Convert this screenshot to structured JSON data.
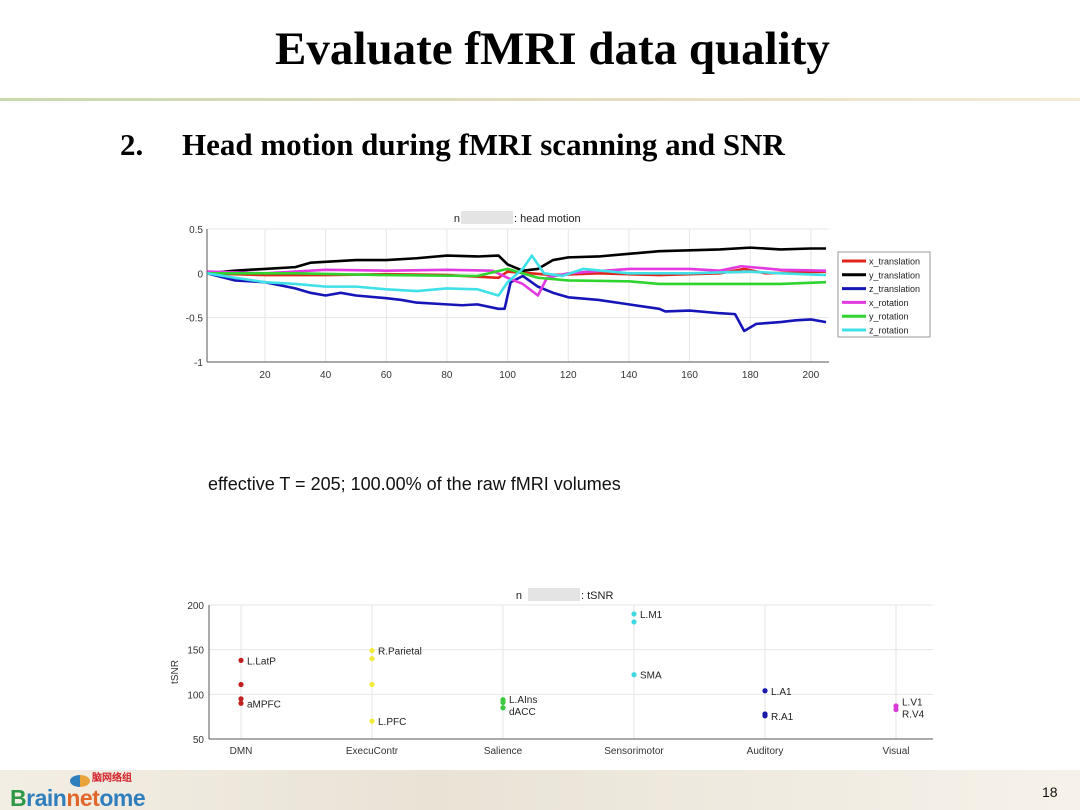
{
  "slide": {
    "title": "Evaluate fMRI data quality",
    "subtitle_number": "2.",
    "subtitle": "Head motion during fMRI scanning and SNR",
    "effective_text": "effective T = 205; 100.00% of the raw fMRI volumes",
    "page_number": "18",
    "logo": "Brainnetome",
    "logo_cn": "脑网络组"
  },
  "chart_data": [
    {
      "type": "line",
      "title_prefix": "n",
      "title_suffix": ": head motion",
      "xlim": [
        1,
        205
      ],
      "ylim": [
        -1,
        0.5
      ],
      "xticks": [
        20,
        40,
        60,
        80,
        100,
        120,
        140,
        160,
        180,
        200
      ],
      "yticks": [
        0.5,
        0,
        -0.5,
        -1
      ],
      "ytick_labels": [
        "0.5",
        "0",
        "-0.5",
        "-1"
      ],
      "grid": true,
      "legend": "right",
      "series": [
        {
          "name": "x_translation",
          "color": "#e0261b",
          "points": [
            [
              1,
              0
            ],
            [
              20,
              -0.02
            ],
            [
              40,
              -0.02
            ],
            [
              60,
              -0.01
            ],
            [
              80,
              -0.02
            ],
            [
              97,
              -0.05
            ],
            [
              100,
              0.02
            ],
            [
              115,
              -0.02
            ],
            [
              130,
              0
            ],
            [
              150,
              -0.02
            ],
            [
              170,
              0
            ],
            [
              178,
              0.05
            ],
            [
              185,
              0
            ],
            [
              205,
              0.02
            ]
          ]
        },
        {
          "name": "y_translation",
          "color": "#000000",
          "points": [
            [
              1,
              0
            ],
            [
              10,
              0.03
            ],
            [
              20,
              0.05
            ],
            [
              30,
              0.07
            ],
            [
              35,
              0.12
            ],
            [
              40,
              0.13
            ],
            [
              50,
              0.15
            ],
            [
              60,
              0.15
            ],
            [
              70,
              0.17
            ],
            [
              80,
              0.2
            ],
            [
              90,
              0.19
            ],
            [
              97,
              0.2
            ],
            [
              100,
              0.1
            ],
            [
              105,
              0.03
            ],
            [
              110,
              0.05
            ],
            [
              115,
              0.15
            ],
            [
              120,
              0.18
            ],
            [
              130,
              0.19
            ],
            [
              140,
              0.22
            ],
            [
              150,
              0.25
            ],
            [
              160,
              0.26
            ],
            [
              170,
              0.27
            ],
            [
              180,
              0.29
            ],
            [
              190,
              0.27
            ],
            [
              200,
              0.28
            ],
            [
              205,
              0.28
            ]
          ]
        },
        {
          "name": "z_translation",
          "color": "#1616b8",
          "points": [
            [
              1,
              0
            ],
            [
              10,
              -0.08
            ],
            [
              20,
              -0.1
            ],
            [
              30,
              -0.17
            ],
            [
              35,
              -0.22
            ],
            [
              40,
              -0.25
            ],
            [
              45,
              -0.22
            ],
            [
              50,
              -0.25
            ],
            [
              60,
              -0.28
            ],
            [
              65,
              -0.3
            ],
            [
              70,
              -0.33
            ],
            [
              80,
              -0.35
            ],
            [
              85,
              -0.36
            ],
            [
              90,
              -0.35
            ],
            [
              97,
              -0.4
            ],
            [
              99,
              -0.4
            ],
            [
              101,
              -0.1
            ],
            [
              105,
              -0.03
            ],
            [
              110,
              -0.15
            ],
            [
              115,
              -0.22
            ],
            [
              120,
              -0.27
            ],
            [
              130,
              -0.3
            ],
            [
              140,
              -0.35
            ],
            [
              150,
              -0.4
            ],
            [
              152,
              -0.43
            ],
            [
              160,
              -0.42
            ],
            [
              170,
              -0.45
            ],
            [
              175,
              -0.46
            ],
            [
              178,
              -0.65
            ],
            [
              182,
              -0.57
            ],
            [
              190,
              -0.55
            ],
            [
              195,
              -0.53
            ],
            [
              200,
              -0.52
            ],
            [
              205,
              -0.55
            ]
          ]
        },
        {
          "name": "x_rotation",
          "color": "#e23ae0",
          "points": [
            [
              1,
              0.02
            ],
            [
              20,
              0
            ],
            [
              40,
              0.04
            ],
            [
              60,
              0.03
            ],
            [
              80,
              0.04
            ],
            [
              95,
              0.03
            ],
            [
              100,
              -0.05
            ],
            [
              105,
              -0.12
            ],
            [
              110,
              -0.25
            ],
            [
              113,
              -0.05
            ],
            [
              120,
              0
            ],
            [
              140,
              0.05
            ],
            [
              160,
              0.05
            ],
            [
              170,
              0.03
            ],
            [
              177,
              0.08
            ],
            [
              190,
              0.04
            ],
            [
              205,
              0.03
            ]
          ]
        },
        {
          "name": "y_rotation",
          "color": "#2fd42f",
          "points": [
            [
              1,
              0
            ],
            [
              30,
              0
            ],
            [
              60,
              -0.02
            ],
            [
              90,
              -0.03
            ],
            [
              100,
              0.05
            ],
            [
              110,
              -0.05
            ],
            [
              120,
              -0.08
            ],
            [
              140,
              -0.09
            ],
            [
              150,
              -0.12
            ],
            [
              170,
              -0.12
            ],
            [
              190,
              -0.12
            ],
            [
              205,
              -0.1
            ]
          ]
        },
        {
          "name": "z_rotation",
          "color": "#3fe0e8",
          "points": [
            [
              1,
              0
            ],
            [
              10,
              -0.05
            ],
            [
              20,
              -0.1
            ],
            [
              30,
              -0.12
            ],
            [
              40,
              -0.15
            ],
            [
              50,
              -0.15
            ],
            [
              60,
              -0.18
            ],
            [
              70,
              -0.2
            ],
            [
              80,
              -0.17
            ],
            [
              90,
              -0.18
            ],
            [
              97,
              -0.25
            ],
            [
              100,
              -0.1
            ],
            [
              105,
              0.05
            ],
            [
              108,
              0.2
            ],
            [
              112,
              0
            ],
            [
              118,
              -0.03
            ],
            [
              125,
              0.05
            ],
            [
              140,
              0
            ],
            [
              160,
              0
            ],
            [
              180,
              0.02
            ],
            [
              190,
              0
            ],
            [
              205,
              -0.02
            ]
          ]
        }
      ]
    },
    {
      "type": "scatter",
      "title_prefix": "n",
      "title_suffix": ": tSNR",
      "ylabel": "tSNR",
      "ylim": [
        50,
        200
      ],
      "yticks": [
        50,
        100,
        150,
        200
      ],
      "grid": true,
      "categories": [
        "DMN",
        "ExecuContr",
        "Salience",
        "Sensorimotor",
        "Auditory",
        "Visual"
      ],
      "groups": [
        {
          "category": "DMN",
          "color": "#c0201e",
          "points": [
            {
              "y": 138,
              "label": "L.LatP"
            },
            {
              "y": 111,
              "label": ""
            },
            {
              "y": 95,
              "label": ""
            },
            {
              "y": 90,
              "label": "aMPFC"
            }
          ]
        },
        {
          "category": "ExecuContr",
          "color": "#f0ec3a",
          "points": [
            {
              "y": 149,
              "label": "R.Parietal"
            },
            {
              "y": 140,
              "label": ""
            },
            {
              "y": 111,
              "label": ""
            },
            {
              "y": 70,
              "label": "L.PFC"
            }
          ]
        },
        {
          "category": "Salience",
          "color": "#3cc83c",
          "points": [
            {
              "y": 94,
              "label": ""
            },
            {
              "y": 91,
              "label": "L.AIns"
            },
            {
              "y": 85,
              "label": "dACC"
            }
          ]
        },
        {
          "category": "Sensorimotor",
          "color": "#3fd8e0",
          "points": [
            {
              "y": 190,
              "label": "L.M1"
            },
            {
              "y": 181,
              "label": ""
            },
            {
              "y": 122,
              "label": "SMA"
            }
          ]
        },
        {
          "category": "Auditory",
          "color": "#1a1aa8",
          "points": [
            {
              "y": 104,
              "label": "L.A1"
            },
            {
              "y": 78,
              "label": ""
            },
            {
              "y": 76,
              "label": "R.A1"
            }
          ]
        },
        {
          "category": "Visual",
          "color": "#d83ad8",
          "points": [
            {
              "y": 87,
              "label": "L.V1"
            },
            {
              "y": 83,
              "label": "R.V4"
            }
          ]
        }
      ]
    }
  ]
}
